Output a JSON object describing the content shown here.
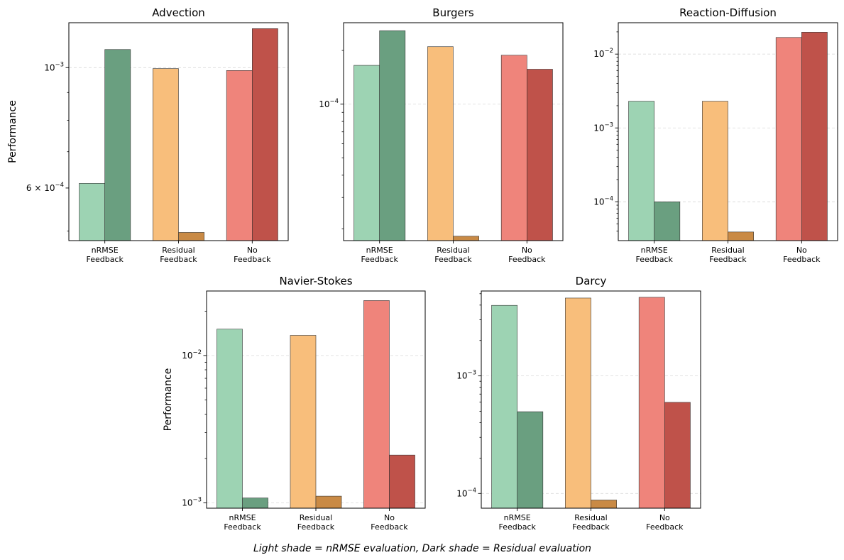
{
  "figure": {
    "caption": "Light shade = nRMSE evaluation, Dark shade = Residual evaluation"
  },
  "colors": {
    "nrmse_light": "#9dd3b3",
    "nrmse_dark": "#6a9f80",
    "residual_light": "#f8be7b",
    "residual_dark": "#c98a45",
    "no_light": "#ef847b",
    "no_dark": "#bf524a",
    "grid": "#d9d9d9",
    "axis": "#000000"
  },
  "chart_data": [
    {
      "type": "bar",
      "title": "Advection",
      "ylabel": "Performance",
      "yscale": "log",
      "ylim": [
        0.00048,
        0.00121
      ],
      "categories": [
        "nRMSE\nFeedback",
        "Residual\nFeedback",
        "No\nFeedback"
      ],
      "series": [
        {
          "name": "nRMSE evaluation",
          "values": [
            0.000612,
            0.000996,
            0.000988
          ]
        },
        {
          "name": "Residual evaluation",
          "values": [
            0.00108,
            0.000497,
            0.00118
          ]
        }
      ],
      "yticks": [
        {
          "value": 0.001,
          "base": "10",
          "exp": "-3",
          "prefix": "",
          "grid": true
        },
        {
          "value": 0.0006,
          "base": "10",
          "exp": "-4",
          "prefix": "6 × ",
          "grid": false
        }
      ],
      "minor_ticks": [
        0.0005,
        0.0007,
        0.0008,
        0.0009
      ]
    },
    {
      "type": "bar",
      "title": "Burgers",
      "ylabel": "",
      "yscale": "log",
      "ylim": [
        1.72e-05,
        0.000286
      ],
      "categories": [
        "nRMSE\nFeedback",
        "Residual\nFeedback",
        "No\nFeedback"
      ],
      "series": [
        {
          "name": "nRMSE evaluation",
          "values": [
            0.000165,
            0.00021,
            0.000188
          ]
        },
        {
          "name": "Residual evaluation",
          "values": [
            0.000258,
            1.82e-05,
            0.000157
          ]
        }
      ],
      "yticks": [
        {
          "value": 0.0001,
          "base": "10",
          "exp": "-4",
          "prefix": "",
          "grid": true
        }
      ],
      "minor_ticks": [
        2e-05,
        3e-05,
        4e-05,
        5e-05,
        6e-05,
        7e-05,
        8e-05,
        9e-05,
        0.0002
      ]
    },
    {
      "type": "bar",
      "title": "Reaction-Diffusion",
      "ylabel": "",
      "yscale": "log",
      "ylim": [
        2.98e-05,
        0.0266
      ],
      "categories": [
        "nRMSE\nFeedback",
        "Residual\nFeedback",
        "No\nFeedback"
      ],
      "series": [
        {
          "name": "nRMSE evaluation",
          "values": [
            0.0023,
            0.0023,
            0.0168
          ]
        },
        {
          "name": "Residual evaluation",
          "values": [
            0.0001,
            3.9e-05,
            0.0198
          ]
        }
      ],
      "yticks": [
        {
          "value": 0.01,
          "base": "10",
          "exp": "-2",
          "prefix": "",
          "grid": true
        },
        {
          "value": 0.001,
          "base": "10",
          "exp": "-3",
          "prefix": "",
          "grid": true
        },
        {
          "value": 0.0001,
          "base": "10",
          "exp": "-4",
          "prefix": "",
          "grid": true
        }
      ],
      "minor_ticks": [
        4e-05,
        5e-05,
        6e-05,
        7e-05,
        8e-05,
        9e-05,
        0.0002,
        0.0003,
        0.0004,
        0.0005,
        0.0006,
        0.0007,
        0.0008,
        0.0009,
        0.002,
        0.003,
        0.004,
        0.005,
        0.006,
        0.007,
        0.008,
        0.009,
        0.02
      ]
    },
    {
      "type": "bar",
      "title": "Navier-Stokes",
      "ylabel": "Performance",
      "yscale": "log",
      "ylim": [
        0.00092,
        0.0274
      ],
      "categories": [
        "nRMSE\nFeedback",
        "Residual\nFeedback",
        "No\nFeedback"
      ],
      "series": [
        {
          "name": "nRMSE evaluation",
          "values": [
            0.0151,
            0.0137,
            0.0236
          ]
        },
        {
          "name": "Residual evaluation",
          "values": [
            0.00108,
            0.00111,
            0.00211
          ]
        }
      ],
      "yticks": [
        {
          "value": 0.01,
          "base": "10",
          "exp": "-2",
          "prefix": "",
          "grid": true
        },
        {
          "value": 0.001,
          "base": "10",
          "exp": "-3",
          "prefix": "",
          "grid": true
        }
      ],
      "minor_ticks": [
        0.002,
        0.003,
        0.004,
        0.005,
        0.006,
        0.007,
        0.008,
        0.009,
        0.02
      ]
    },
    {
      "type": "bar",
      "title": "Darcy",
      "ylabel": "",
      "yscale": "log",
      "ylim": [
        7.5e-05,
        0.00527
      ],
      "categories": [
        "nRMSE\nFeedback",
        "Residual\nFeedback",
        "No\nFeedback"
      ],
      "series": [
        {
          "name": "nRMSE evaluation",
          "values": [
            0.00398,
            0.00459,
            0.00466
          ]
        },
        {
          "name": "Residual evaluation",
          "values": [
            0.000496,
            8.8e-05,
            0.000596
          ]
        }
      ],
      "yticks": [
        {
          "value": 0.001,
          "base": "10",
          "exp": "-3",
          "prefix": "",
          "grid": true
        },
        {
          "value": 0.0001,
          "base": "10",
          "exp": "-4",
          "prefix": "",
          "grid": true
        }
      ],
      "minor_ticks": [
        0.0002,
        0.0003,
        0.0004,
        0.0005,
        0.0006,
        0.0007,
        0.0008,
        0.0009,
        0.002,
        0.003,
        0.004,
        0.005
      ]
    }
  ]
}
